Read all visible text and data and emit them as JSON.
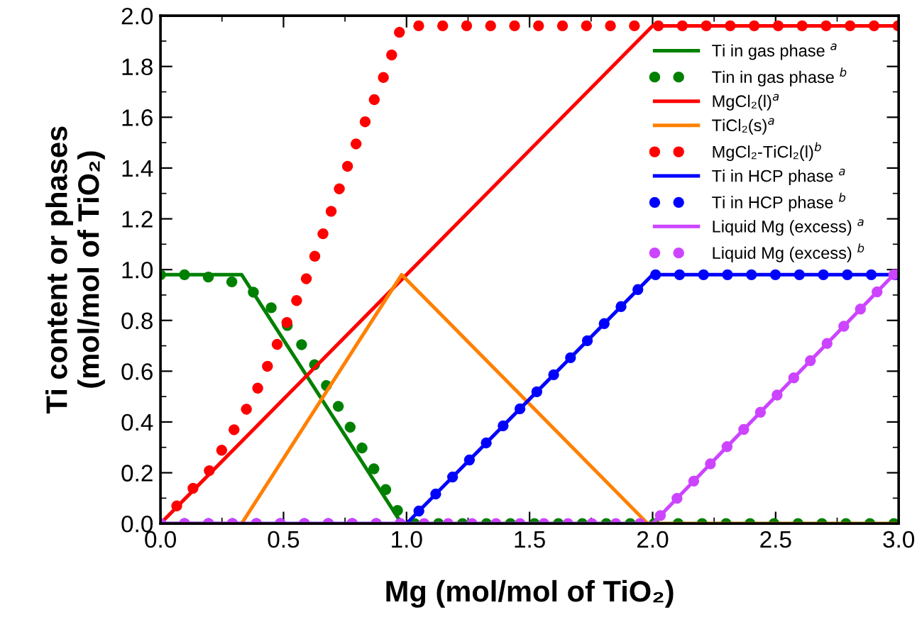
{
  "chart_data": {
    "type": "line",
    "xlabel": "Mg (mol/mol of TiO₂)",
    "ylabel": "Ti content or phases\n(mol/mol of TiO₂)",
    "xlim": [
      0,
      3
    ],
    "ylim": [
      0,
      2
    ],
    "xticks": [
      {
        "value": 0,
        "label": "0.0"
      },
      0.5,
      {
        "value": 1,
        "label": "1.0"
      },
      1.5,
      {
        "value": 2,
        "label": "2.0"
      },
      2.5,
      {
        "value": 3,
        "label": "3.0"
      }
    ],
    "yticks": [
      {
        "value": 0,
        "label": "0.0"
      },
      0.2,
      0.4,
      0.6,
      0.8,
      {
        "value": 1,
        "label": "1.0"
      },
      1.2,
      1.4,
      1.6,
      1.8,
      {
        "value": 2,
        "label": "2.0"
      }
    ],
    "grid": false,
    "legend": "top right",
    "marker": "none",
    "series": [
      {
        "name": "Ti in gas phase $^{a}$",
        "color": "#008000",
        "line_style": "solid",
        "x": [
          0,
          0.33,
          0.98,
          3
        ],
        "values": [
          0.98,
          0.98,
          0,
          0
        ]
      },
      {
        "name": "Tin in gas phase $^{b}$",
        "color": "#008000",
        "line_style": "dotted",
        "x": [
          0,
          0.1,
          0.2,
          0.3,
          0.4,
          0.5,
          0.6,
          0.7,
          0.8,
          0.9,
          0.97,
          1.0,
          3
        ],
        "values": [
          0.98,
          0.98,
          0.97,
          0.95,
          0.9,
          0.8,
          0.67,
          0.5,
          0.33,
          0.16,
          0.04,
          0,
          0
        ]
      },
      {
        "name": "MgCl₂(l)$^{a}$",
        "color": "#ff0000",
        "line_style": "solid",
        "x": [
          0,
          2,
          3
        ],
        "values": [
          0,
          1.96,
          1.96
        ]
      },
      {
        "name": "TiCl₂(s)$^{a}$",
        "color": "#ff8000",
        "line_style": "solid",
        "x": [
          0,
          0.33,
          0.98,
          1.98,
          3
        ],
        "values": [
          0,
          0,
          0.98,
          0,
          0
        ]
      },
      {
        "name": "MgCl₂-TiCl₂(l)$^{b}$",
        "color": "#ff0000",
        "line_style": "dotted",
        "x": [
          0,
          0.2,
          0.38,
          0.6,
          0.78,
          0.92,
          0.98,
          3
        ],
        "values": [
          0,
          0.21,
          0.5,
          0.98,
          1.46,
          1.79,
          1.96,
          1.96
        ]
      },
      {
        "name": "Ti in HCP phase $^{a}$",
        "color": "#0000ff",
        "line_style": "solid",
        "x": [
          0,
          1,
          2,
          3
        ],
        "values": [
          0,
          0,
          0.98,
          0.98
        ]
      },
      {
        "name": "Ti in HCP phase $^{b}$",
        "color": "#0000ff",
        "line_style": "dotted",
        "x": [
          0,
          1,
          2,
          3
        ],
        "values": [
          0,
          0,
          0.98,
          0.98
        ]
      },
      {
        "name": "Liquid Mg (excess) $^{a}$",
        "color": "#cc44ff",
        "line_style": "solid",
        "x": [
          0,
          2,
          3
        ],
        "values": [
          0,
          0,
          1.0
        ]
      },
      {
        "name": "Liquid Mg (excess) $^{b}$",
        "color": "#cc44ff",
        "line_style": "dotted",
        "x": [
          0,
          2,
          3
        ],
        "values": [
          0,
          0,
          1.0
        ]
      }
    ]
  }
}
